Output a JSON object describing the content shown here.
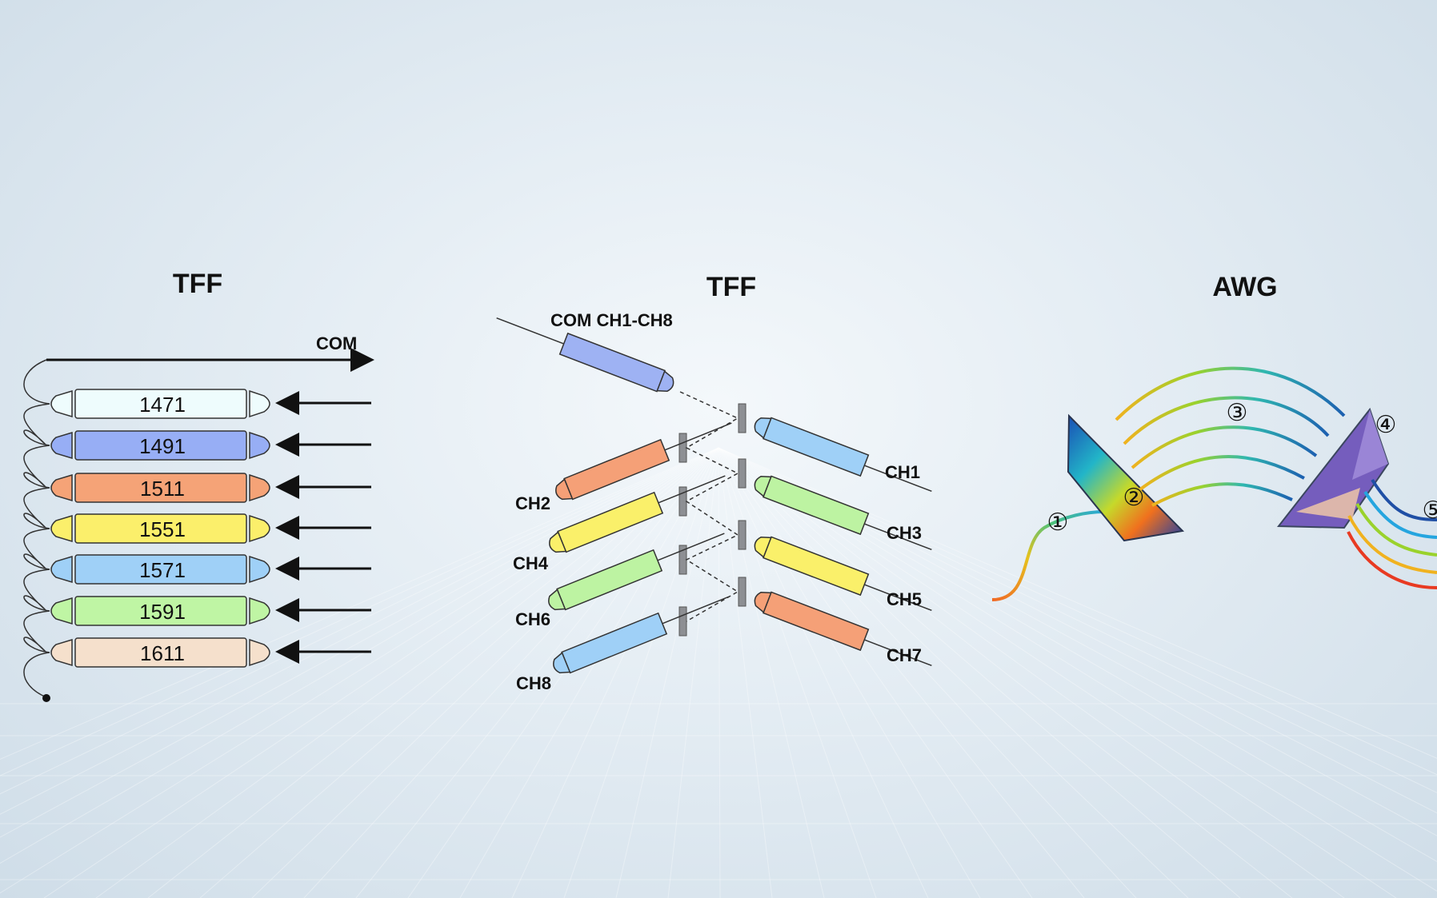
{
  "panels": {
    "left": {
      "title": "TFF",
      "com_label": "COM",
      "lanes": [
        {
          "label": "1471",
          "color": "#eefcfd"
        },
        {
          "label": "1491",
          "color": "#97aef5"
        },
        {
          "label": "1511",
          "color": "#f5a377"
        },
        {
          "label": "1551",
          "color": "#fbef6b"
        },
        {
          "label": "1571",
          "color": "#9fd0f7"
        },
        {
          "label": "1591",
          "color": "#bff5a4"
        },
        {
          "label": "1611",
          "color": "#f5e0cc"
        }
      ]
    },
    "middle": {
      "title": "TFF",
      "com_label": "COM CH1-CH8",
      "com_color": "#9eb2f3",
      "left_channels": [
        {
          "label": "CH2",
          "color": "#f5a077"
        },
        {
          "label": "CH4",
          "color": "#faf06a"
        },
        {
          "label": "CH6",
          "color": "#bdf3a2"
        },
        {
          "label": "CH8",
          "color": "#9fd0f7"
        }
      ],
      "right_channels": [
        {
          "label": "CH1",
          "color": "#9fd0f7"
        },
        {
          "label": "CH3",
          "color": "#bdf3a2"
        },
        {
          "label": "CH5",
          "color": "#faf06a"
        },
        {
          "label": "CH7",
          "color": "#f5a077"
        }
      ]
    },
    "right": {
      "title": "AWG",
      "markers": [
        "①",
        "②",
        "③",
        "④",
        "⑤"
      ]
    }
  }
}
